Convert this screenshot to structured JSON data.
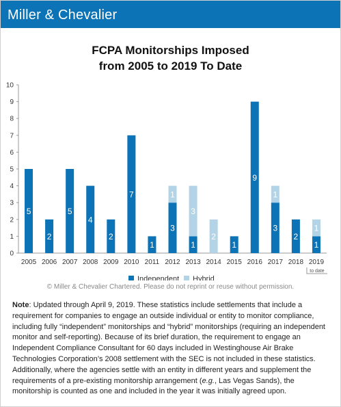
{
  "header": {
    "brand": "Miller & Chevalier"
  },
  "chart_data": {
    "type": "bar",
    "stacked": true,
    "title": [
      "FCPA Monitorships Imposed",
      "from 2005 to 2019 To Date"
    ],
    "categories": [
      "2005",
      "2006",
      "2007",
      "2008",
      "2009",
      "2010",
      "2011",
      "2012",
      "2013",
      "2014",
      "2015",
      "2016",
      "2017",
      "2018",
      "2019"
    ],
    "category_note": {
      "2019": "to date"
    },
    "series": [
      {
        "name": "Independent",
        "color": "#0b73b6",
        "values": [
          5,
          2,
          5,
          4,
          2,
          7,
          1,
          3,
          1,
          0,
          1,
          9,
          3,
          2,
          1
        ]
      },
      {
        "name": "Hybrid",
        "color": "#b3d4e6",
        "values": [
          0,
          0,
          0,
          0,
          0,
          0,
          0,
          1,
          3,
          2,
          0,
          0,
          1,
          0,
          1
        ]
      }
    ],
    "ylim": [
      0,
      10
    ],
    "yticks": [
      0,
      1,
      2,
      3,
      4,
      5,
      6,
      7,
      8,
      9,
      10
    ],
    "grid": false,
    "legend": "bottom",
    "data_labels": true
  },
  "copyright": "© Miller & Chevalier Chartered. Please do not reprint or reuse without permission.",
  "note": {
    "label": "Note",
    "text": ": Updated through April 9, 2019. These statistics include settlements that include a requirement for companies to engage an outside individual or entity to monitor compliance, including fully “independent” monitorships and “hybrid” monitorships (requiring an independent monitor and self-reporting). Because of its brief duration, the requirement to engage an Independent Compliance Consultant for 60 days included in Westinghouse Air Brake Technologies Corporation’s 2008 settlement with the SEC is not included in these statistics. Additionally, where the agencies settle with an entity in different years and supplement the requirements of a pre-existing monitorship arrangement (",
    "italic": "e.g.",
    "text_end": ", Las Vegas Sands), the monitorship is counted as one and included in the year it was initially agreed upon."
  }
}
